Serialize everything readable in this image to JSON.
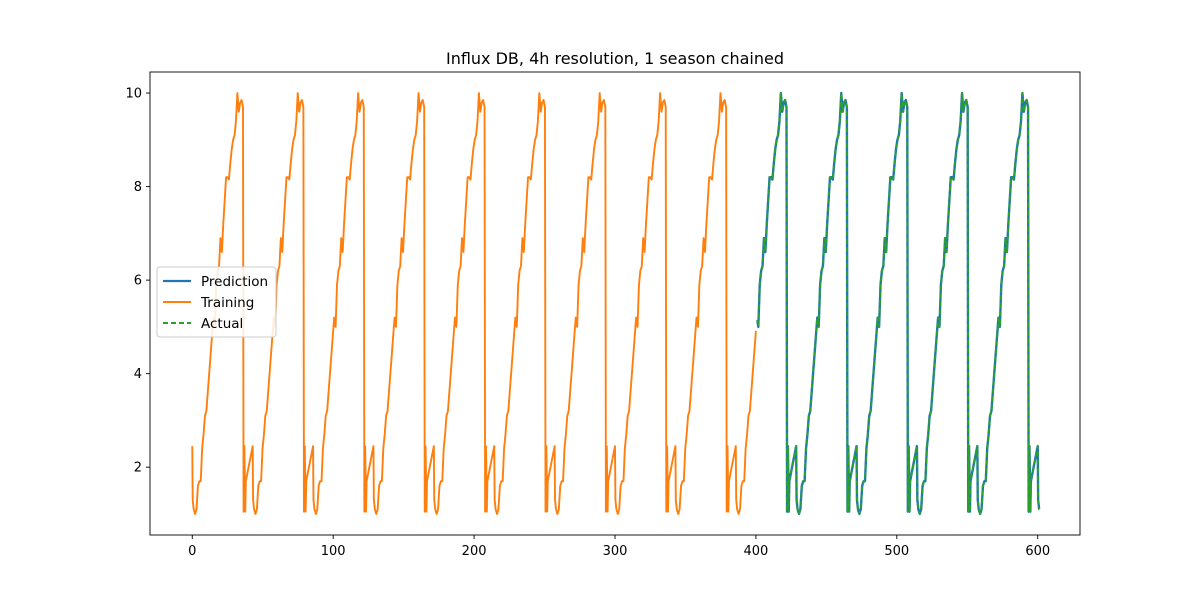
{
  "chart_data": {
    "type": "line",
    "title": "Influx DB, 4h resolution, 1 season chained",
    "xlabel": "",
    "ylabel": "",
    "xlim": [
      -30,
      630
    ],
    "ylim": [
      0.55,
      10.45
    ],
    "xticks": [
      0,
      100,
      200,
      300,
      400,
      500,
      600
    ],
    "yticks": [
      2,
      4,
      6,
      8,
      10
    ],
    "grid": false,
    "legend_position": "center-left",
    "season_length": 42.857,
    "season_profile": [
      [
        0.0,
        2.45
      ],
      [
        0.3,
        1.3
      ],
      [
        1.0,
        1.1
      ],
      [
        2.0,
        1.0
      ],
      [
        3.0,
        1.1
      ],
      [
        4.0,
        1.6
      ],
      [
        5.0,
        1.7
      ],
      [
        6.0,
        1.7
      ],
      [
        7.0,
        2.4
      ],
      [
        8.0,
        2.7
      ],
      [
        9.0,
        3.1
      ],
      [
        10.0,
        3.2
      ],
      [
        12.0,
        4.0
      ],
      [
        14.0,
        4.8
      ],
      [
        15.0,
        5.2
      ],
      [
        16.0,
        5.0
      ],
      [
        17.0,
        5.9
      ],
      [
        18.0,
        6.2
      ],
      [
        19.0,
        6.3
      ],
      [
        20.0,
        6.9
      ],
      [
        21.0,
        6.6
      ],
      [
        22.0,
        7.2
      ],
      [
        23.0,
        7.7
      ],
      [
        24.0,
        8.2
      ],
      [
        25.0,
        8.2
      ],
      [
        26.0,
        8.15
      ],
      [
        27.0,
        8.5
      ],
      [
        28.0,
        8.8
      ],
      [
        29.0,
        9.0
      ],
      [
        30.0,
        9.1
      ],
      [
        31.0,
        9.4
      ],
      [
        32.0,
        10.0
      ],
      [
        33.0,
        9.6
      ],
      [
        34.0,
        9.8
      ],
      [
        35.0,
        9.85
      ],
      [
        36.0,
        9.7
      ],
      [
        36.4,
        1.05
      ],
      [
        37.0,
        2.45
      ],
      [
        37.6,
        1.05
      ],
      [
        38.0,
        1.7
      ],
      [
        42.857,
        2.45
      ]
    ],
    "series": [
      {
        "name": "Prediction",
        "color": "#1f77b4",
        "style": "solid",
        "x_range": [
          401,
          601
        ]
      },
      {
        "name": "Training",
        "color": "#ff7f0e",
        "style": "solid",
        "x_range": [
          0,
          400
        ]
      },
      {
        "name": "Actual",
        "color": "#2ca02c",
        "style": "dashed",
        "x_range": [
          401,
          601
        ]
      }
    ]
  }
}
